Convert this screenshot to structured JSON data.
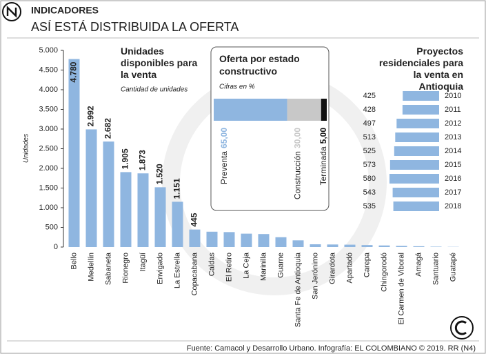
{
  "header": {
    "section": "INDICADORES",
    "title": "ASÍ ESTÁ DISTRIBUIDA LA OFERTA"
  },
  "footer": {
    "source": "Fuente: Camacol y Desarrollo Urbano. Infografía: EL COLOMBIANO © 2019. RR (N4)"
  },
  "chart_data": [
    {
      "type": "bar",
      "title": "Unidades disponibles para la venta",
      "subtitle": "Cantidad de unidades",
      "y_label": "Unidades",
      "color": "#8fb6e0",
      "categories": [
        "Bello",
        "Medellín",
        "Sabaneta",
        "Rionegro",
        "Itagüí",
        "Envigado",
        "La Estrella",
        "Copacabana",
        "Caldas",
        "El Retiro",
        "La Ceja",
        "Marinilla",
        "Guarne",
        "Santa Fe de Antioquia",
        "San Jerónimo",
        "Girardota",
        "Apartadó",
        "Carepa",
        "Chingorodó",
        "El Carmen de Viboral",
        "Amagá",
        "Santuario",
        "Guatapé"
      ],
      "values": [
        4780,
        2992,
        2682,
        1905,
        1873,
        1520,
        1151,
        445,
        390,
        380,
        340,
        330,
        250,
        170,
        70,
        65,
        60,
        50,
        40,
        30,
        20,
        10,
        5
      ],
      "value_labels": [
        "4.780",
        "2.992",
        "2.682",
        "1.905",
        "1.873",
        "1.520",
        "1.151",
        "445",
        null,
        null,
        null,
        null,
        null,
        null,
        null,
        null,
        null,
        null,
        null,
        null,
        null,
        null,
        null
      ],
      "ylim": [
        0,
        5000
      ],
      "yticks": [
        0,
        500,
        {
          "value": 1000,
          "label": "1.000"
        },
        {
          "value": 1500,
          "label": "1.500"
        },
        {
          "value": 2000,
          "label": "2.000"
        },
        {
          "value": 2500,
          "label": "2.500"
        },
        {
          "value": 3000,
          "label": "3.000"
        },
        {
          "value": 3500,
          "label": "3.500"
        },
        {
          "value": 4000,
          "label": "4.000"
        },
        {
          "value": 4500,
          "label": "4.500"
        },
        {
          "value": 5000,
          "label": "5.000"
        }
      ]
    },
    {
      "type": "stacked-bar",
      "title": "Oferta por estado constructivo",
      "subtitle": "Cifras en %",
      "xlim": [
        0,
        100
      ],
      "series": [
        {
          "name": "Preventa",
          "color": "#8fb6e0",
          "values": [
            65.0
          ],
          "value_labels": [
            "65,00"
          ]
        },
        {
          "name": "Construcción",
          "color": "#c8c8c8",
          "values": [
            30.0
          ],
          "value_labels": [
            "30,00"
          ]
        },
        {
          "name": "Terminada",
          "color": "#111111",
          "values": [
            5.0
          ],
          "value_labels": [
            "5,00"
          ]
        }
      ]
    },
    {
      "type": "hbar",
      "title": "Proyectos residenciales para la venta en Antioquia",
      "color": "#8fb6e0",
      "categories": [
        "2010",
        "2011",
        "2012",
        "2013",
        "2014",
        "2015",
        "2016",
        "2017",
        "2018"
      ],
      "values": [
        425,
        428,
        497,
        513,
        525,
        573,
        580,
        543,
        535
      ],
      "xlim": [
        0,
        580
      ]
    }
  ]
}
